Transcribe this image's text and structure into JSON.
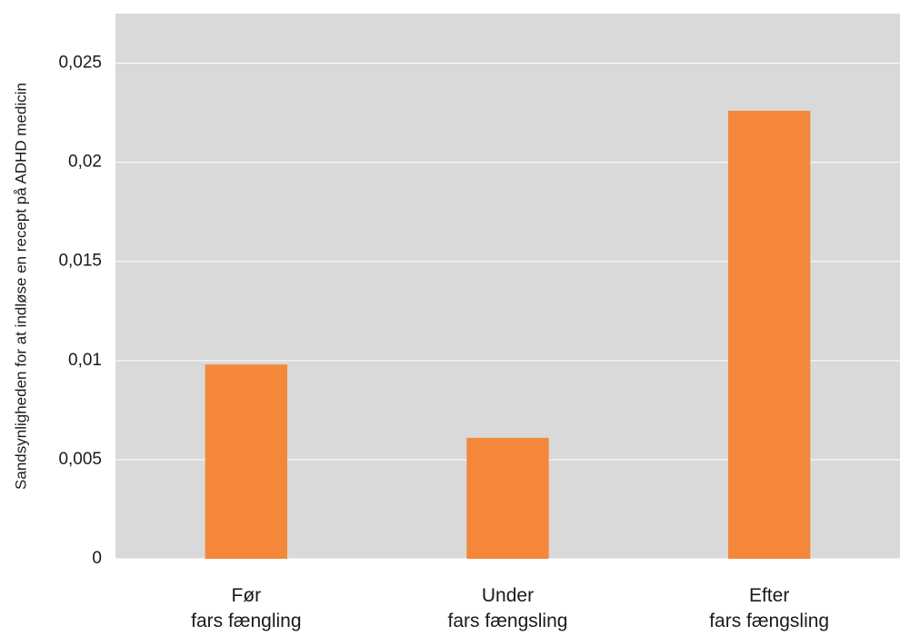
{
  "chart_data": {
    "type": "bar",
    "y_label": "Sandsynligheden for at indløse en recept på ADHD medicin",
    "categories": [
      "Før\nfars fængling",
      "Under\nfars fængsling",
      "Efter\nfars fængsling"
    ],
    "values": [
      0.0098,
      0.0061,
      0.0226
    ],
    "color": "#f4873a",
    "ylim": [
      0,
      0.0275
    ],
    "yticks": [
      0,
      {
        "value": 0.005,
        "label": "0,005"
      },
      {
        "value": 0.01,
        "label": "0,01"
      },
      {
        "value": 0.015,
        "label": "0,015"
      },
      {
        "value": 0.02,
        "label": "0,02"
      },
      {
        "value": 0.025,
        "label": "0,025"
      }
    ],
    "grid": true
  }
}
